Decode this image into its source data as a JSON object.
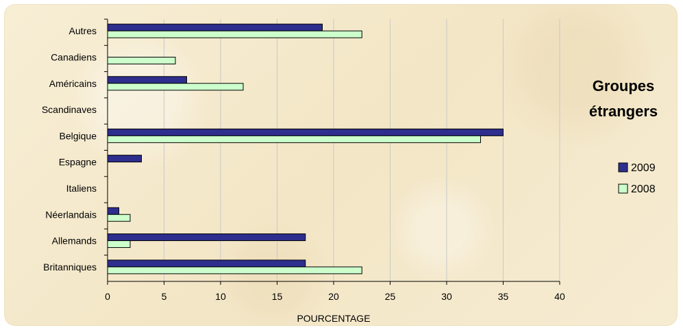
{
  "chart_data": {
    "type": "bar",
    "orientation": "horizontal",
    "title": [
      "Groupes",
      "étrangers"
    ],
    "xlabel": "POURCENTAGE",
    "ylabel": "",
    "xlim": [
      0,
      40
    ],
    "xticks": [
      0,
      5,
      10,
      15,
      20,
      25,
      30,
      35,
      40
    ],
    "grid": "vertical",
    "legend_placement": "right",
    "categories": [
      "Autres",
      "Canadiens",
      "Américains",
      "Scandinaves",
      "Belgique",
      "Espagne",
      "Italiens",
      "Néerlandais",
      "Allemands",
      "Britanniques"
    ],
    "series": [
      {
        "name": "2009",
        "color": "#2e2e8e",
        "values": [
          19,
          0,
          7,
          0,
          35,
          3,
          0,
          1,
          17.5,
          17.5
        ]
      },
      {
        "name": "2008",
        "color": "#ccffcc",
        "values": [
          22.5,
          6,
          12,
          0,
          33,
          0,
          0,
          2,
          2,
          22.5
        ]
      }
    ]
  }
}
